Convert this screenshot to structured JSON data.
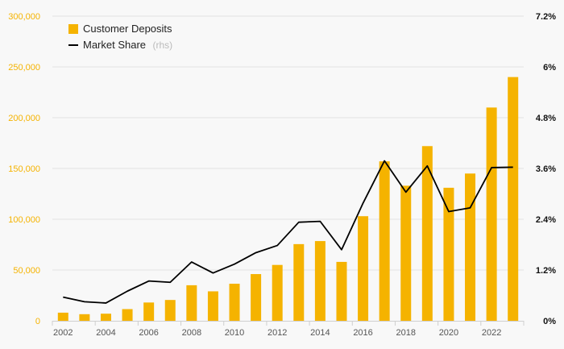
{
  "chart_data": {
    "type": "bar",
    "categories": [
      "2002",
      "2003",
      "2004",
      "2005",
      "2006",
      "2007",
      "2008",
      "2009",
      "2010",
      "2011",
      "2012",
      "2013",
      "2014",
      "2015",
      "2016",
      "2017",
      "2018",
      "2019",
      "2020",
      "2021",
      "2022",
      "2023"
    ],
    "x_tick_labels": [
      "2002",
      "2004",
      "2006",
      "2008",
      "2010",
      "2012",
      "2014",
      "2016",
      "2018",
      "2020",
      "2022"
    ],
    "series": [
      {
        "name": "Customer Deposits",
        "type": "bar",
        "axis": "left",
        "color": "#f5b300",
        "values": [
          8000,
          6500,
          7000,
          11500,
          18000,
          20500,
          35000,
          29000,
          36500,
          46000,
          55000,
          75500,
          78500,
          58000,
          103000,
          157000,
          133000,
          172000,
          131000,
          145000,
          210000,
          240000
        ]
      },
      {
        "name": "Market Share",
        "type": "line",
        "axis": "right",
        "color": "#000000",
        "values": [
          0.56,
          0.45,
          0.42,
          0.7,
          0.94,
          0.91,
          1.39,
          1.13,
          1.34,
          1.61,
          1.78,
          2.33,
          2.35,
          1.68,
          2.78,
          3.78,
          3.04,
          3.66,
          2.58,
          2.67,
          3.62,
          3.63
        ]
      }
    ],
    "ylim_left": [
      0,
      300000
    ],
    "yticks_left": [
      "0",
      "50,000",
      "100,000",
      "150,000",
      "200,000",
      "250,000",
      "300,000"
    ],
    "ylim_right": [
      0,
      7.2
    ],
    "yticks_right": [
      "0%",
      "1.2%",
      "2.4%",
      "3.6%",
      "4.8%",
      "6%",
      "7.2%"
    ],
    "legend": {
      "position": "top-left",
      "items": [
        {
          "label": "Customer Deposits",
          "note": ""
        },
        {
          "label": "Market Share",
          "note": "(rhs)"
        }
      ]
    },
    "grid": true
  }
}
